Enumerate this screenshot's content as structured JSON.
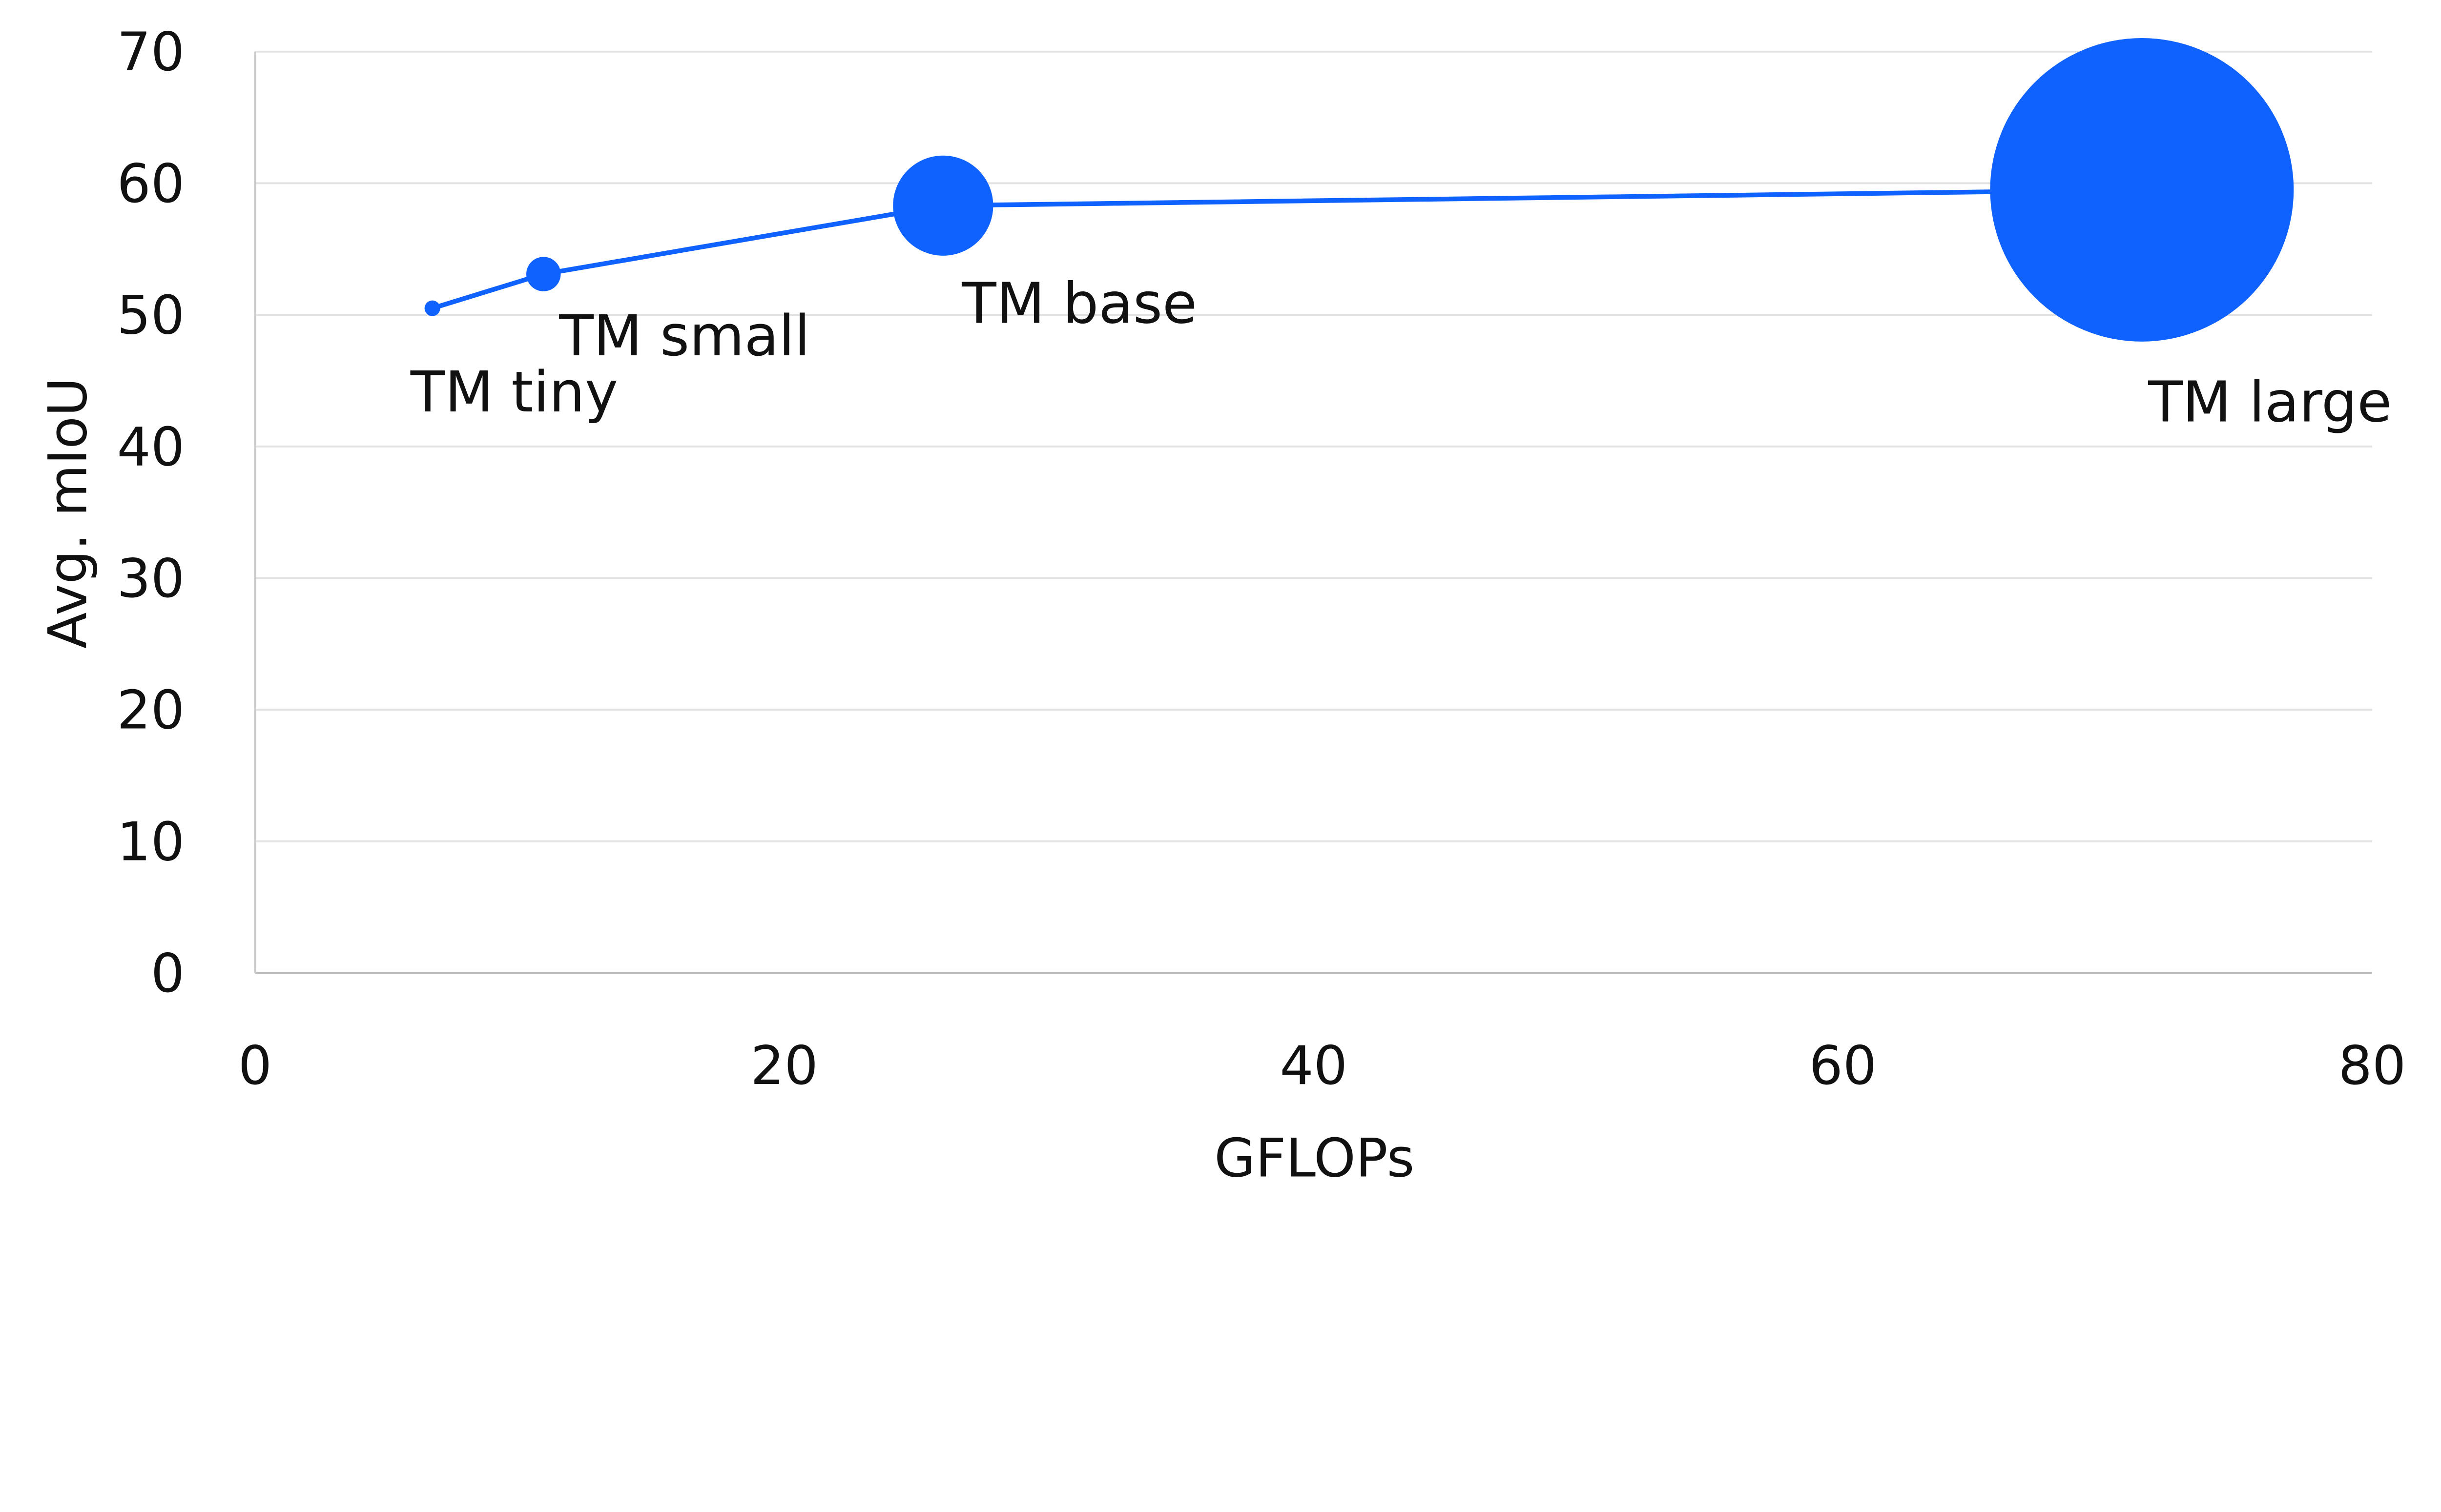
{
  "chart_data": {
    "type": "scatter",
    "title": "",
    "xlabel": "GFLOPs",
    "ylabel": "Avg. mIoU",
    "xlim": [
      0,
      80
    ],
    "ylim": [
      0,
      70
    ],
    "xticks": [
      "0",
      "20",
      "40",
      "60",
      "80"
    ],
    "yticks": [
      "0",
      "10",
      "20",
      "30",
      "40",
      "50",
      "60",
      "70"
    ],
    "grid": "horizontal",
    "connected_line": true,
    "color": "#1062FF",
    "points": [
      {
        "label": "TM tiny",
        "x": 6.7,
        "y": 50.5
      },
      {
        "label": "TM small",
        "x": 10.9,
        "y": 53.1
      },
      {
        "label": "TM base",
        "x": 26.0,
        "y": 58.3
      },
      {
        "label": "TM large",
        "x": 71.3,
        "y": 59.5
      }
    ]
  }
}
